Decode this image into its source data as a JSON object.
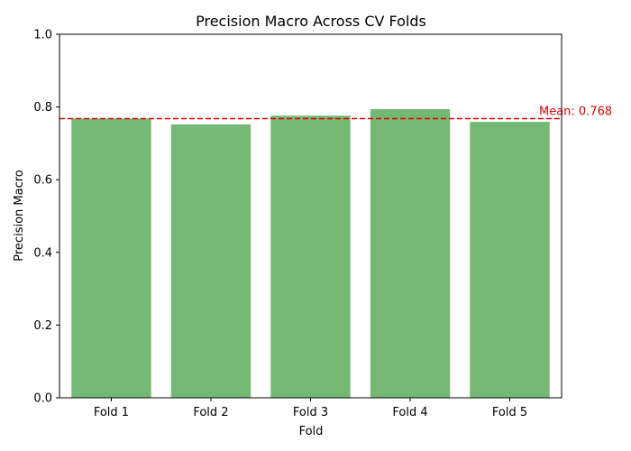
{
  "chart_data": {
    "type": "bar",
    "title": "Precision Macro Across CV Folds",
    "xlabel": "Fold",
    "ylabel": "Precision Macro",
    "categories": [
      "Fold 1",
      "Fold 2",
      "Fold 3",
      "Fold 4",
      "Fold 5"
    ],
    "values": [
      0.768,
      0.752,
      0.776,
      0.794,
      0.759
    ],
    "ylim": [
      0,
      1.0
    ],
    "yticks": [
      "0.0",
      "0.2",
      "0.4",
      "0.6",
      "0.8",
      "1.0"
    ],
    "grid": false,
    "legend": "none",
    "bar_color": "#73b973",
    "mean": {
      "value": 0.768,
      "label": "Mean: 0.768",
      "color": "#e00000",
      "style": "dashed"
    }
  }
}
